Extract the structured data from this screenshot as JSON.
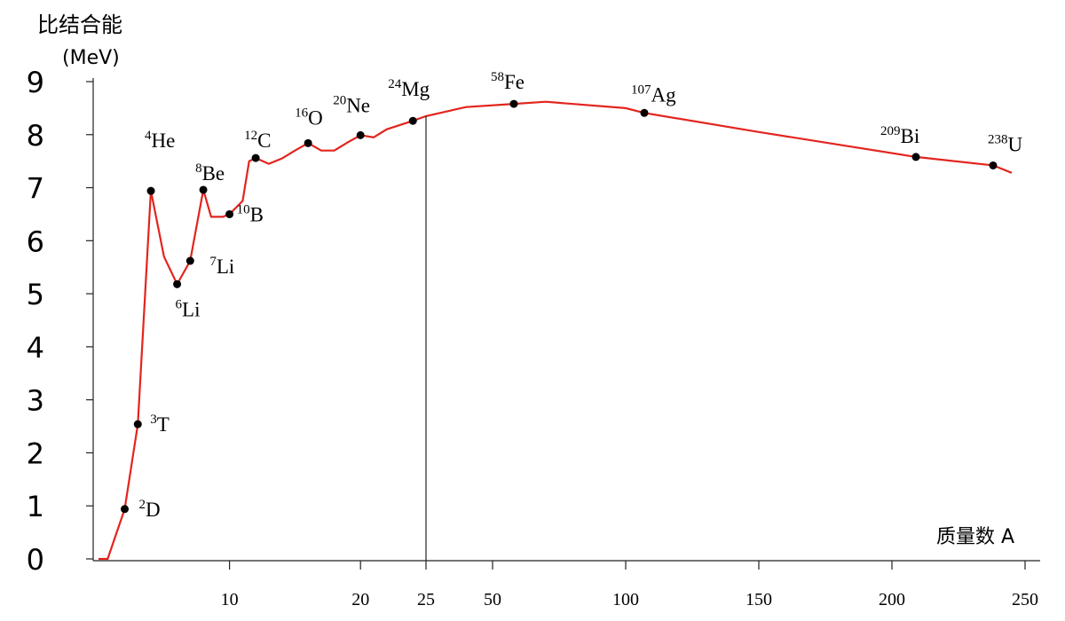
{
  "chart_data": {
    "type": "line",
    "ylabel": "比结合能",
    "yunit": "(MeV)",
    "xlabel": "质量数 A",
    "xlim": [
      0,
      250
    ],
    "x_break": 25,
    "ylim": [
      0,
      9
    ],
    "xticks": [
      10,
      20,
      25,
      50,
      100,
      150,
      200,
      250
    ],
    "yticks": [
      0,
      1,
      2,
      3,
      4,
      5,
      6,
      7,
      8,
      9
    ],
    "series": [
      {
        "color": "#e3241e",
        "x": [
          0,
          0.7,
          2,
          3,
          4,
          5,
          6,
          7,
          8,
          8.6,
          9.5,
          10,
          11,
          11.5,
          12,
          13,
          14,
          15,
          16,
          17,
          18,
          19,
          20,
          21,
          22,
          24,
          25,
          40,
          58,
          70,
          100,
          107,
          150,
          209,
          238,
          245
        ],
        "values": [
          0,
          0,
          0.94,
          2.54,
          6.94,
          5.7,
          5.18,
          5.62,
          6.96,
          6.45,
          6.45,
          6.5,
          6.75,
          7.5,
          7.56,
          7.45,
          7.55,
          7.7,
          7.84,
          7.7,
          7.7,
          7.85,
          7.99,
          7.95,
          8.1,
          8.26,
          8.35,
          8.52,
          8.58,
          8.62,
          8.5,
          8.41,
          8.05,
          7.58,
          7.42,
          7.28
        ]
      }
    ],
    "points": {
      "color": "#000000",
      "x": [
        2,
        3,
        4,
        6,
        7,
        8,
        10,
        12,
        16,
        20,
        24,
        58,
        107,
        209,
        238
      ],
      "values": [
        0.94,
        2.54,
        6.94,
        5.18,
        5.62,
        6.96,
        6.5,
        7.56,
        7.84,
        7.99,
        8.26,
        8.58,
        8.41,
        7.58,
        7.42
      ],
      "labels": [
        "D",
        "T",
        "He",
        "Li",
        "Li",
        "Be",
        "B",
        "C",
        "O",
        "Ne",
        "Mg",
        "Fe",
        "Ag",
        "Bi",
        "U"
      ]
    }
  }
}
